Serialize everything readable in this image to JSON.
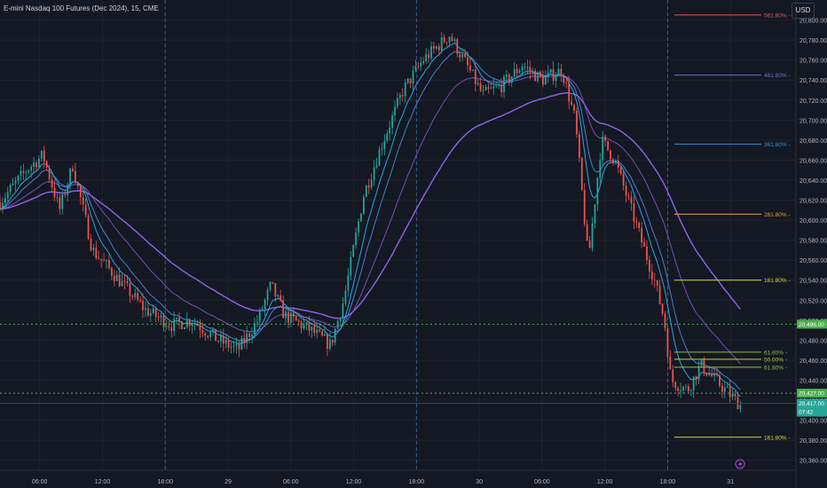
{
  "header": {
    "title": "E-mini Nasdaq 100 Futures (Dec 2024), 15, CME",
    "currency": "USD"
  },
  "colors": {
    "background": "#141823",
    "grid": "#1e222d",
    "up": "#26a69a",
    "down": "#ef5350",
    "ema_fast": "#29b6f6",
    "ema_mid": "#4a8de0",
    "ma_slow": "#7e57c2",
    "ma_long": "#9c6bff",
    "price_line_green": "#4caf50",
    "price_line_yellow": "#d4d43a"
  },
  "chart_data": {
    "type": "candlestick",
    "symbol": "E-mini Nasdaq 100 Futures (Dec 2024), 15, CME",
    "ylim": [
      20350,
      20820
    ],
    "yticks": [
      20360,
      20380,
      20400,
      20420,
      20440,
      20460,
      20480,
      20500,
      20520,
      20540,
      20560,
      20580,
      20600,
      20620,
      20640,
      20660,
      20680,
      20700,
      20720,
      20740,
      20760,
      20780,
      20800
    ],
    "xticks": [
      {
        "label": "06:00",
        "t": 0.06
      },
      {
        "label": "12:00",
        "t": 0.155
      },
      {
        "label": "18:00",
        "t": 0.25
      },
      {
        "label": "29",
        "t": 0.345
      },
      {
        "label": "06:00",
        "t": 0.44
      },
      {
        "label": "12:00",
        "t": 0.535
      },
      {
        "label": "18:00",
        "t": 0.63
      },
      {
        "label": "30",
        "t": 0.725
      },
      {
        "label": "06:00",
        "t": 0.82
      },
      {
        "label": "12:00",
        "t": 0.915
      },
      {
        "label": "18:00",
        "t": 1.01
      },
      {
        "label": "31",
        "t": 1.105
      }
    ],
    "session_separators": [
      0.25,
      0.63,
      1.01
    ],
    "path_keypoints": [
      [
        0.0,
        20618
      ],
      [
        0.04,
        20650
      ],
      [
        0.065,
        20665
      ],
      [
        0.09,
        20610
      ],
      [
        0.11,
        20655
      ],
      [
        0.14,
        20570
      ],
      [
        0.18,
        20540
      ],
      [
        0.22,
        20510
      ],
      [
        0.26,
        20495
      ],
      [
        0.29,
        20500
      ],
      [
        0.33,
        20480
      ],
      [
        0.36,
        20470
      ],
      [
        0.39,
        20500
      ],
      [
        0.41,
        20535
      ],
      [
        0.43,
        20505
      ],
      [
        0.47,
        20490
      ],
      [
        0.5,
        20475
      ],
      [
        0.52,
        20520
      ],
      [
        0.55,
        20625
      ],
      [
        0.58,
        20680
      ],
      [
        0.61,
        20730
      ],
      [
        0.64,
        20760
      ],
      [
        0.68,
        20785
      ],
      [
        0.71,
        20750
      ],
      [
        0.73,
        20725
      ],
      [
        0.76,
        20735
      ],
      [
        0.79,
        20755
      ],
      [
        0.82,
        20740
      ],
      [
        0.85,
        20750
      ],
      [
        0.87,
        20700
      ],
      [
        0.89,
        20560
      ],
      [
        0.91,
        20680
      ],
      [
        0.93,
        20660
      ],
      [
        0.96,
        20600
      ],
      [
        0.99,
        20540
      ],
      [
        1.005,
        20500
      ],
      [
        1.015,
        20440
      ],
      [
        1.04,
        20430
      ],
      [
        1.06,
        20455
      ],
      [
        1.09,
        20435
      ],
      [
        1.12,
        20415
      ]
    ],
    "candle_count": 286,
    "horizontal_lines": [
      {
        "price": 20496,
        "style": "dotted",
        "color": "#4caf50",
        "badge": "20,496.00",
        "badge_color": "#4caf50"
      },
      {
        "price": 20427,
        "style": "dotted",
        "color": "#4caf50",
        "badge": "20,427.00",
        "badge_color": "#4caf50"
      },
      {
        "price": 20417,
        "style": "solid",
        "color": "#2f4740",
        "badge": "20,417.00",
        "badge2": "07:42",
        "badge_color": "#26a69a"
      }
    ],
    "fib_levels": [
      {
        "label": "561.80%",
        "price": 20805,
        "color": "#e05555"
      },
      {
        "label": "461.80%",
        "price": 20745,
        "color": "#7e6bd6"
      },
      {
        "label": "361.80%",
        "price": 20676,
        "color": "#2f8fd6"
      },
      {
        "label": "261.80%",
        "price": 20606,
        "color": "#e3a030"
      },
      {
        "label": "161.80%",
        "price": 20540,
        "color": "#d8d83a"
      },
      {
        "label": "61.80%",
        "price": 20468,
        "color": "#8fbf4a"
      },
      {
        "label": "50.00%",
        "price": 20461,
        "color": "#b0d040"
      },
      {
        "label": "61.80%",
        "price": 20453,
        "color": "#8fbf4a"
      },
      {
        "label": "161.80%",
        "price": 20383,
        "color": "#d8d83a"
      }
    ]
  }
}
